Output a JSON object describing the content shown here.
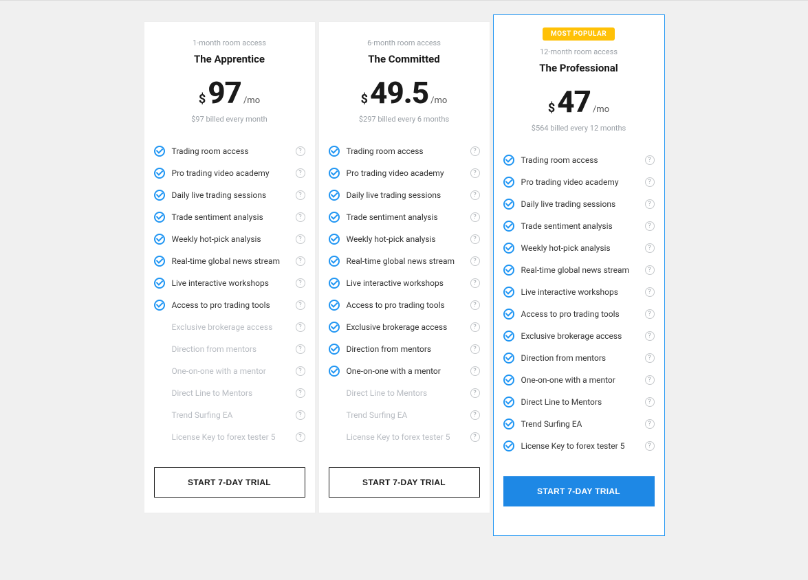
{
  "colors": {
    "page_bg": "#f0f0f0",
    "card_bg": "#ffffff",
    "card_border": "#eeeeee",
    "featured_border": "#2196f3",
    "badge_bg": "#ffc107",
    "badge_text": "#ffffff",
    "text_primary": "#1a1a1a",
    "text_muted": "#9aa0a6",
    "text_disabled": "#b8bcc2",
    "accent": "#2196f3",
    "cta_primary_bg": "#1e88e5",
    "cta_primary_text": "#ffffff",
    "help_border": "#c6c9cc"
  },
  "common": {
    "currency": "$",
    "per": "/mo",
    "help_glyph": "?",
    "cta_label": "START 7-DAY TRIAL",
    "badge_label": "MOST POPULAR"
  },
  "feature_labels": [
    "Trading room access",
    "Pro trading video academy",
    "Daily live trading sessions",
    "Trade sentiment analysis",
    "Weekly hot-pick analysis",
    "Real-time global news stream",
    "Live interactive workshops",
    "Access to pro trading tools",
    "Exclusive brokerage access",
    "Direction from mentors",
    "One-on-one with a mentor",
    "Direct Line to Mentors",
    "Trend Surfing EA",
    "License Key to forex tester 5"
  ],
  "plans": [
    {
      "duration": "1-month room access",
      "title": "The Apprentice",
      "price": "97",
      "billed": "$97 billed every month",
      "featured": false,
      "included": [
        true,
        true,
        true,
        true,
        true,
        true,
        true,
        true,
        false,
        false,
        false,
        false,
        false,
        false
      ]
    },
    {
      "duration": "6-month room access",
      "title": "The Committed",
      "price": "49.5",
      "billed": "$297 billed every 6 months",
      "featured": false,
      "included": [
        true,
        true,
        true,
        true,
        true,
        true,
        true,
        true,
        true,
        true,
        true,
        false,
        false,
        false
      ]
    },
    {
      "duration": "12-month room access",
      "title": "The Professional",
      "price": "47",
      "billed": "$564 billed every 12 months",
      "featured": true,
      "included": [
        true,
        true,
        true,
        true,
        true,
        true,
        true,
        true,
        true,
        true,
        true,
        true,
        true,
        true
      ]
    }
  ]
}
